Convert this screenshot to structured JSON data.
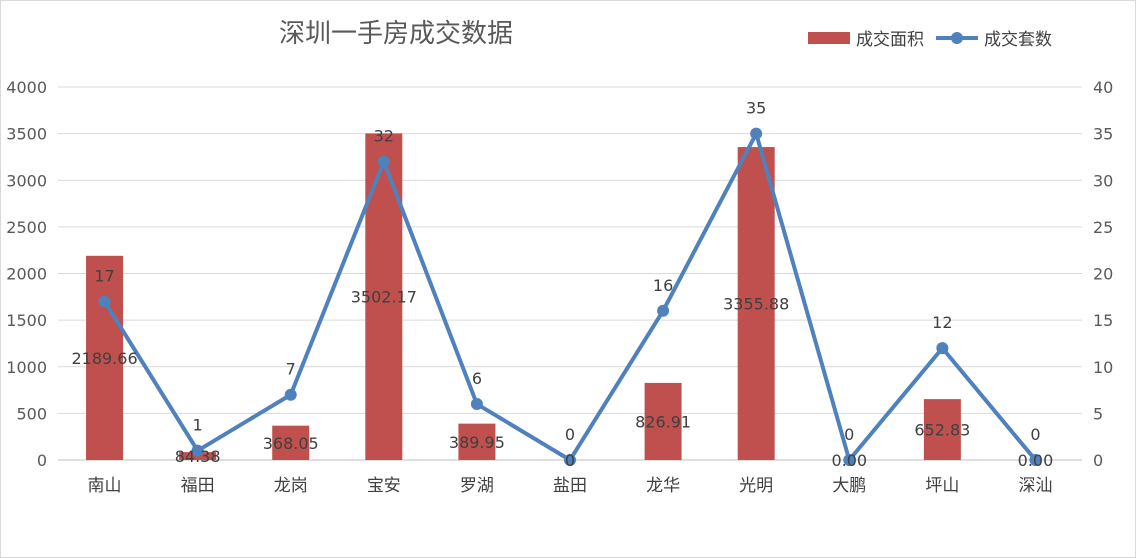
{
  "chart_data": {
    "type": "bar",
    "title": "深圳一手房成交数据",
    "categories": [
      "南山",
      "福田",
      "龙岗",
      "宝安",
      "罗湖",
      "盐田",
      "龙华",
      "光明",
      "大鹏",
      "坪山",
      "深汕"
    ],
    "series": [
      {
        "name": "成交面积",
        "type": "bar",
        "axis": "left",
        "color": "#c0504d",
        "values": [
          2189.66,
          84.38,
          368.05,
          3502.17,
          389.95,
          0,
          826.91,
          3355.88,
          0,
          652.83,
          0
        ],
        "labels": [
          "2189.66",
          "84.38",
          "368.05",
          "3502.17",
          "389.95",
          "0",
          "826.91",
          "3355.88",
          "0.00",
          "652.83",
          "0.00"
        ]
      },
      {
        "name": "成交套数",
        "type": "line",
        "axis": "right",
        "color": "#4f81bd",
        "values": [
          17,
          1,
          7,
          32,
          6,
          0,
          16,
          35,
          0,
          12,
          0
        ],
        "labels": [
          "17",
          "1",
          "7",
          "32",
          "6",
          "0",
          "16",
          "35",
          "0",
          "12",
          "0"
        ]
      }
    ],
    "yleft": {
      "min": 0,
      "max": 4000,
      "ticks": [
        "0",
        "500",
        "1000",
        "1500",
        "2000",
        "2500",
        "3000",
        "3500",
        "4000"
      ]
    },
    "yright": {
      "min": 0,
      "max": 40,
      "ticks": [
        "0",
        "5",
        "10",
        "15",
        "20",
        "25",
        "30",
        "35",
        "40"
      ]
    },
    "grid": true,
    "legend": "top-right"
  }
}
